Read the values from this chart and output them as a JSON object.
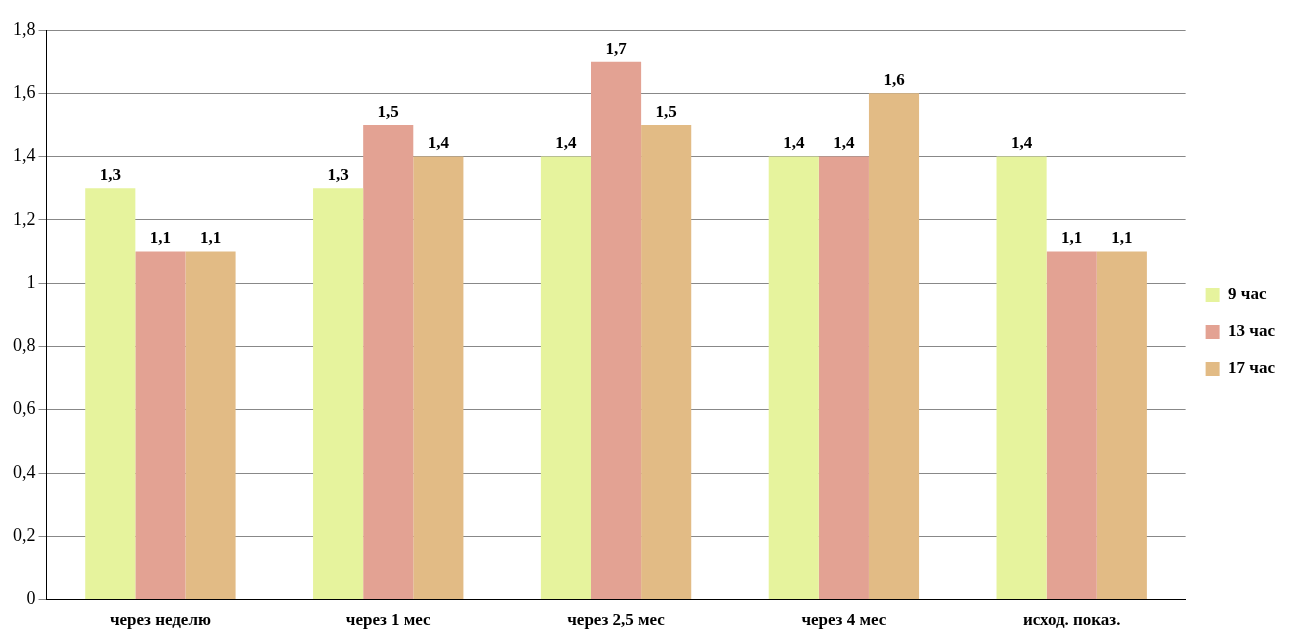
{
  "chart_data": {
    "type": "bar",
    "categories": [
      "через неделю",
      "через 1 мес",
      "через 2,5 мес",
      "через 4 мес",
      "исход. показ."
    ],
    "series": [
      {
        "name": "9 час",
        "color": "#e6f39d",
        "values": [
          1.3,
          1.3,
          1.4,
          1.4,
          1.4
        ],
        "value_labels": [
          "1,3",
          "1,3",
          "1,4",
          "1,4",
          "1,4"
        ]
      },
      {
        "name": "13 час",
        "color": "#e3a293",
        "values": [
          1.1,
          1.5,
          1.7,
          1.4,
          1.1
        ],
        "value_labels": [
          "1,1",
          "1,5",
          "1,7",
          "1,4",
          "1,1"
        ]
      },
      {
        "name": "17 час",
        "color": "#e2bb85",
        "values": [
          1.1,
          1.4,
          1.5,
          1.6,
          1.1
        ],
        "value_labels": [
          "1,1",
          "1,4",
          "1,5",
          "1,6",
          "1,1"
        ]
      }
    ],
    "ylim": [
      0,
      1.8
    ],
    "yticks": [
      0,
      {
        "value": 0.2,
        "label": "0,2"
      },
      {
        "value": 0.4,
        "label": "0,4"
      },
      {
        "value": 0.6,
        "label": "0,6"
      },
      {
        "value": 0.8,
        "label": "0,8"
      },
      1,
      {
        "value": 1.2,
        "label": "1,2"
      },
      {
        "value": 1.4,
        "label": "1,4"
      },
      {
        "value": 1.6,
        "label": "1,6"
      },
      {
        "value": 1.8,
        "label": "1,8"
      }
    ],
    "grid": "y",
    "legend": "right"
  }
}
